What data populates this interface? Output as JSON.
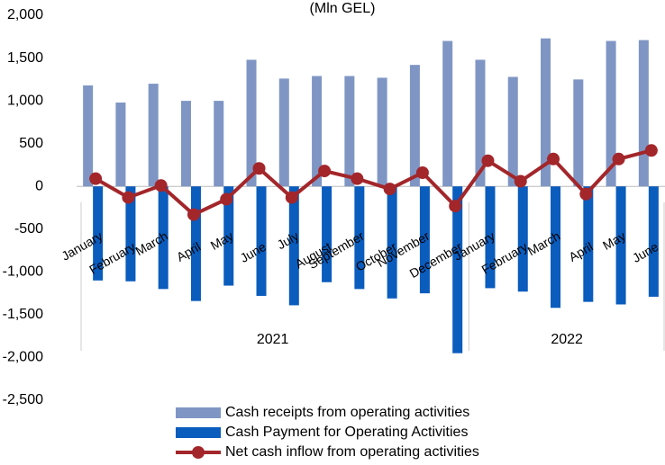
{
  "chart_data": {
    "type": "bar",
    "title": "(Mln GEL)",
    "categories": [
      "January",
      "February",
      "March",
      "April",
      "May",
      "June",
      "July",
      "August",
      "September",
      "October",
      "November",
      "December",
      "January",
      "February",
      "March",
      "April",
      "May",
      "June"
    ],
    "groups": [
      {
        "label": "2021",
        "span": 12
      },
      {
        "label": "2022",
        "span": 6
      }
    ],
    "series": [
      {
        "name": "Cash receipts from operating activities",
        "type": "bar",
        "color": "#7f96c4",
        "values": [
          1180,
          980,
          1200,
          1000,
          1000,
          1480,
          1260,
          1290,
          1290,
          1270,
          1420,
          1700,
          1480,
          1280,
          1730,
          1250,
          1700,
          1710
        ]
      },
      {
        "name": "Cash Payment for Operating Activities",
        "type": "bar",
        "color": "#0a5cbd",
        "values": [
          -1100,
          -1110,
          -1200,
          -1340,
          -1160,
          -1280,
          -1390,
          -1120,
          -1200,
          -1310,
          -1250,
          -1950,
          -1190,
          -1230,
          -1420,
          -1350,
          -1380,
          -1290
        ]
      },
      {
        "name": "Net cash inflow from operating activities",
        "type": "line",
        "color": "#a3262a",
        "values": [
          90,
          -130,
          10,
          -330,
          -150,
          210,
          -130,
          180,
          90,
          -30,
          160,
          -230,
          300,
          60,
          320,
          -90,
          320,
          420
        ]
      }
    ],
    "ylim": [
      -2500,
      2000
    ],
    "yticks": [
      {
        "value": -2500,
        "label": "-2,500"
      },
      {
        "value": -2000,
        "label": "-2,000"
      },
      {
        "value": -1500,
        "label": "-1,500"
      },
      {
        "value": -1000,
        "label": "-1,000"
      },
      -500,
      0,
      500,
      {
        "value": 1000,
        "label": "1,000"
      },
      {
        "value": 1500,
        "label": "1,500"
      },
      {
        "value": 2000,
        "label": "2,000"
      }
    ],
    "legend": "bottom"
  }
}
